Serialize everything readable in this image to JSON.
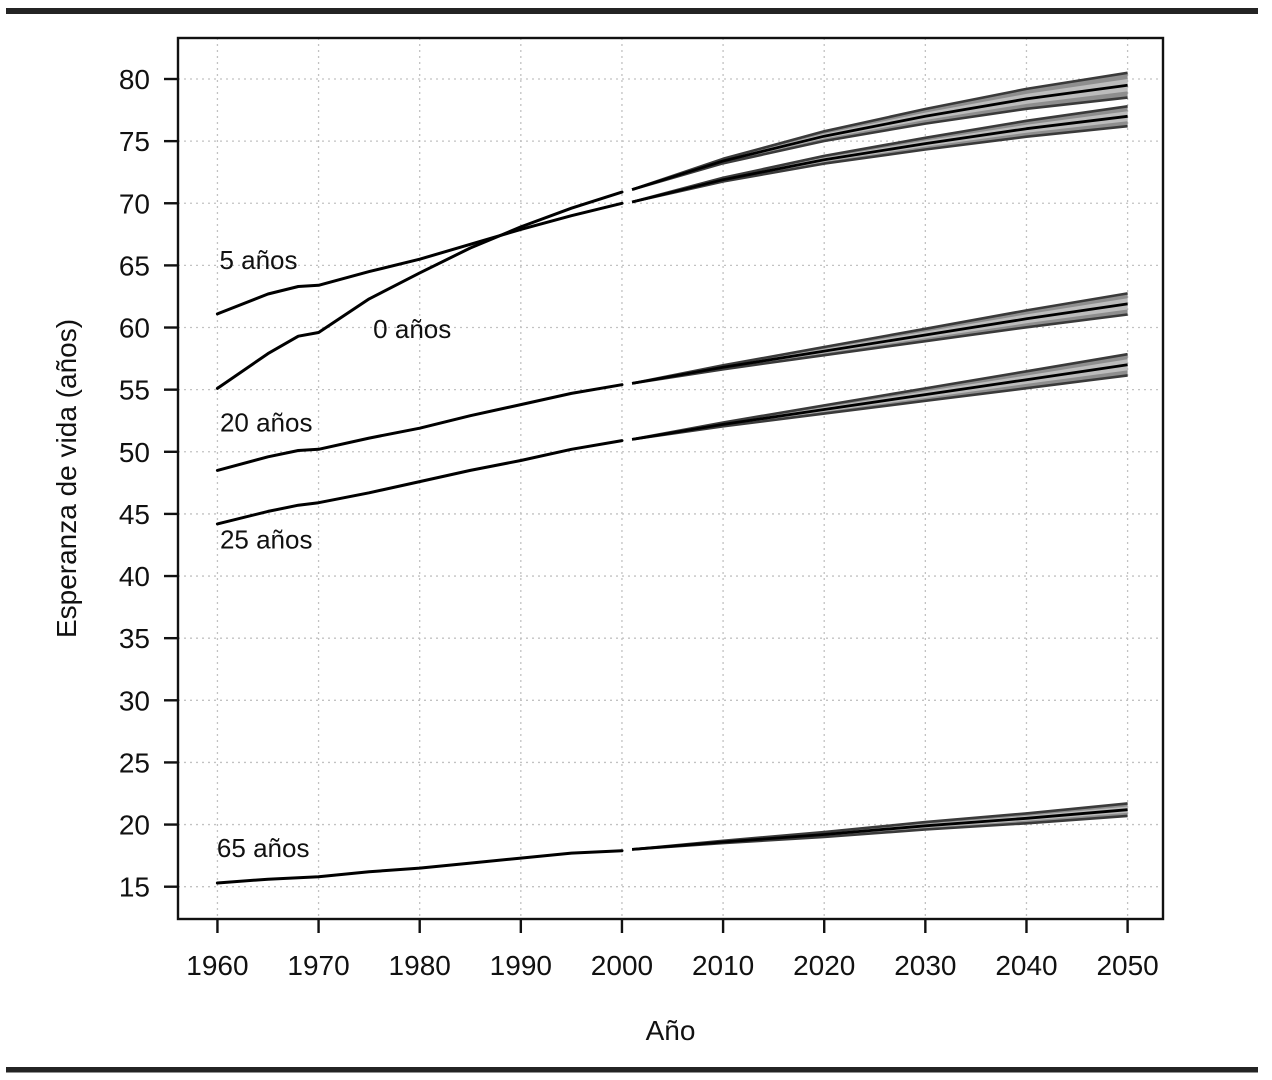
{
  "page": {
    "rule_color": "#242424",
    "background": "#ffffff"
  },
  "chart_data": {
    "type": "line",
    "title": "",
    "xlabel": "Año",
    "ylabel": "Esperanza de vida (años)",
    "xlim": [
      1956.1,
      2053.5
    ],
    "ylim": [
      12.4,
      83.3
    ],
    "x_ticks": [
      1960,
      1970,
      1980,
      1990,
      2000,
      2010,
      2020,
      2030,
      2040,
      2050
    ],
    "y_ticks": [
      15,
      20,
      25,
      30,
      35,
      40,
      45,
      50,
      55,
      60,
      65,
      70,
      75,
      80
    ],
    "grid": true,
    "legend_position": "inline-labels",
    "colors": {
      "line": "#000000",
      "band_outer_fill": "#8e8e8e",
      "band_inner_fill": "#bcbcbc",
      "band_edge": "#3a3a3a",
      "grid": "#c2c2c2",
      "frame": "#111111",
      "text": "#111111",
      "rule": "#242424",
      "background": "#ffffff"
    },
    "series": [
      {
        "name": "0 años",
        "label": "0 años",
        "label_at": [
          1975.4,
          59.9
        ],
        "observed": {
          "years": [
            1960,
            1965,
            1968,
            1970,
            1975,
            1980,
            1985,
            1990,
            1995,
            2000
          ],
          "values": [
            55.1,
            57.9,
            59.3,
            59.6,
            62.3,
            64.4,
            66.4,
            68.1,
            69.6,
            70.9
          ]
        },
        "projection": {
          "years": [
            2001,
            2010,
            2020,
            2030,
            2040,
            2050
          ],
          "median": [
            71.1,
            73.4,
            75.4,
            77.0,
            78.4,
            79.5
          ],
          "inner_lower": [
            71.1,
            73.31,
            75.21,
            76.7,
            78.0,
            79.0
          ],
          "inner_upper": [
            71.1,
            73.49,
            75.6,
            77.3,
            78.8,
            80.0
          ],
          "outer_lower": [
            71.1,
            73.22,
            75.01,
            76.41,
            77.6,
            78.5
          ],
          "outer_upper": [
            71.1,
            73.58,
            75.79,
            77.59,
            79.2,
            80.5
          ]
        }
      },
      {
        "name": "5 años",
        "label": "5 años",
        "label_at": [
          1960.2,
          65.45
        ],
        "observed": {
          "years": [
            1960,
            1965,
            1968,
            1970,
            1975,
            1980,
            1985,
            1990,
            1995,
            2000
          ],
          "values": [
            61.1,
            62.7,
            63.3,
            63.4,
            64.5,
            65.5,
            66.7,
            67.9,
            69.0,
            70.0
          ]
        },
        "projection": {
          "years": [
            2001,
            2010,
            2020,
            2030,
            2040,
            2050
          ],
          "median": [
            70.1,
            71.9,
            73.5,
            74.8,
            76.0,
            77.0
          ],
          "inner_lower": [
            70.1,
            71.83,
            73.34,
            74.56,
            75.68,
            76.6
          ],
          "inner_upper": [
            70.1,
            71.97,
            73.66,
            75.04,
            76.32,
            77.4
          ],
          "outer_lower": [
            70.1,
            71.75,
            73.19,
            74.33,
            75.36,
            76.2
          ],
          "outer_upper": [
            70.1,
            72.05,
            73.81,
            75.27,
            76.64,
            77.8
          ]
        }
      },
      {
        "name": "20 años",
        "label": "20 años",
        "label_at": [
          1960.25,
          52.35
        ],
        "observed": {
          "years": [
            1960,
            1965,
            1968,
            1970,
            1975,
            1980,
            1985,
            1990,
            1995,
            2000
          ],
          "values": [
            48.5,
            49.6,
            50.1,
            50.2,
            51.1,
            51.9,
            52.9,
            53.8,
            54.7,
            55.4
          ]
        },
        "projection": {
          "years": [
            2001,
            2010,
            2020,
            2030,
            2040,
            2050
          ],
          "median": [
            55.5,
            56.8,
            58.1,
            59.4,
            60.7,
            61.9
          ],
          "inner_lower": [
            55.5,
            56.72,
            57.93,
            59.13,
            60.34,
            61.45
          ],
          "inner_upper": [
            55.5,
            56.88,
            58.27,
            59.67,
            61.06,
            62.35
          ],
          "outer_lower": [
            55.5,
            56.64,
            57.77,
            58.9,
            60.02,
            61.05
          ],
          "outer_upper": [
            55.5,
            56.96,
            58.43,
            59.9,
            61.38,
            62.75
          ]
        }
      },
      {
        "name": "25 años",
        "label": "25 años",
        "label_at": [
          1960.25,
          42.95
        ],
        "observed": {
          "years": [
            1960,
            1965,
            1968,
            1970,
            1975,
            1980,
            1985,
            1990,
            1995,
            2000
          ],
          "values": [
            44.2,
            45.2,
            45.7,
            45.9,
            46.7,
            47.6,
            48.5,
            49.3,
            50.2,
            50.9
          ]
        },
        "projection": {
          "years": [
            2001,
            2010,
            2020,
            2030,
            2040,
            2050
          ],
          "median": [
            51.0,
            52.2,
            53.4,
            54.6,
            55.8,
            57.0
          ],
          "inner_lower": [
            51.0,
            52.12,
            53.23,
            54.33,
            55.46,
            56.55
          ],
          "inner_upper": [
            51.0,
            52.28,
            53.57,
            54.87,
            56.14,
            57.45
          ],
          "outer_lower": [
            51.0,
            52.04,
            53.07,
            54.1,
            55.12,
            56.15
          ],
          "outer_upper": [
            51.0,
            52.36,
            53.73,
            55.1,
            56.48,
            57.85
          ]
        }
      },
      {
        "name": "65 años",
        "label": "65 años",
        "label_at": [
          1959.95,
          18.1
        ],
        "observed": {
          "years": [
            1960,
            1965,
            1970,
            1975,
            1980,
            1985,
            1990,
            1995,
            2000
          ],
          "values": [
            15.3,
            15.6,
            15.8,
            16.2,
            16.5,
            16.9,
            17.3,
            17.7,
            17.9
          ]
        },
        "projection": {
          "years": [
            2001,
            2010,
            2020,
            2030,
            2040,
            2050
          ],
          "median": [
            18.0,
            18.6,
            19.2,
            19.9,
            20.5,
            21.2
          ],
          "inner_lower": [
            18.0,
            18.55,
            19.1,
            19.75,
            20.3,
            20.95
          ],
          "inner_upper": [
            18.0,
            18.65,
            19.3,
            20.05,
            20.7,
            21.45
          ],
          "outer_lower": [
            18.0,
            18.51,
            19.01,
            19.6,
            20.1,
            20.7
          ],
          "outer_upper": [
            18.0,
            18.69,
            19.39,
            20.2,
            20.9,
            21.7
          ]
        }
      }
    ]
  }
}
